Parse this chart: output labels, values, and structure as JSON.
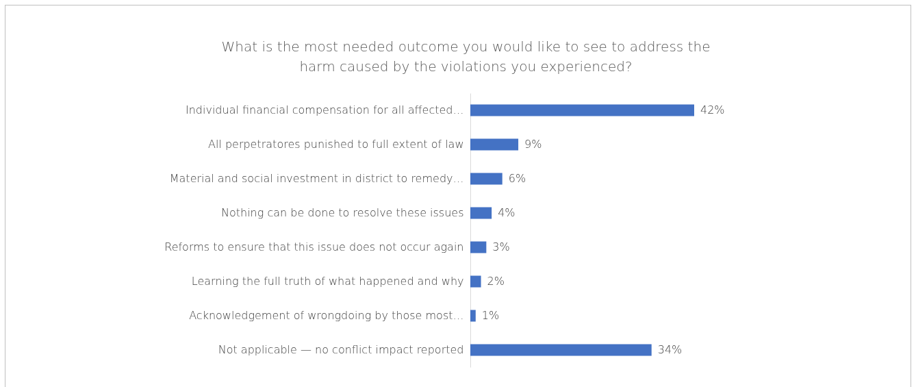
{
  "chart_data": {
    "type": "bar",
    "orientation": "horizontal",
    "title": "What is the most needed outcome you would like to see to address the harm caused by the violations you experienced?",
    "categories": [
      "Individual financial compensation for all affected…",
      "All perpetratores punished to full extent of law",
      "Material and social investment in district to remedy…",
      "Nothing can be done to resolve these issues",
      "Reforms to ensure that this issue does not occur again",
      "Learning the full truth of what happened and why",
      "Acknowledgement of wrongdoing by those most…",
      "Not applicable — no conflict impact reported"
    ],
    "values": [
      42,
      9,
      6,
      4,
      3,
      2,
      1,
      34
    ],
    "value_labels": [
      "42%",
      "9%",
      "6%",
      "4%",
      "3%",
      "2%",
      "1%",
      "34%"
    ],
    "color": "#4472c4"
  }
}
